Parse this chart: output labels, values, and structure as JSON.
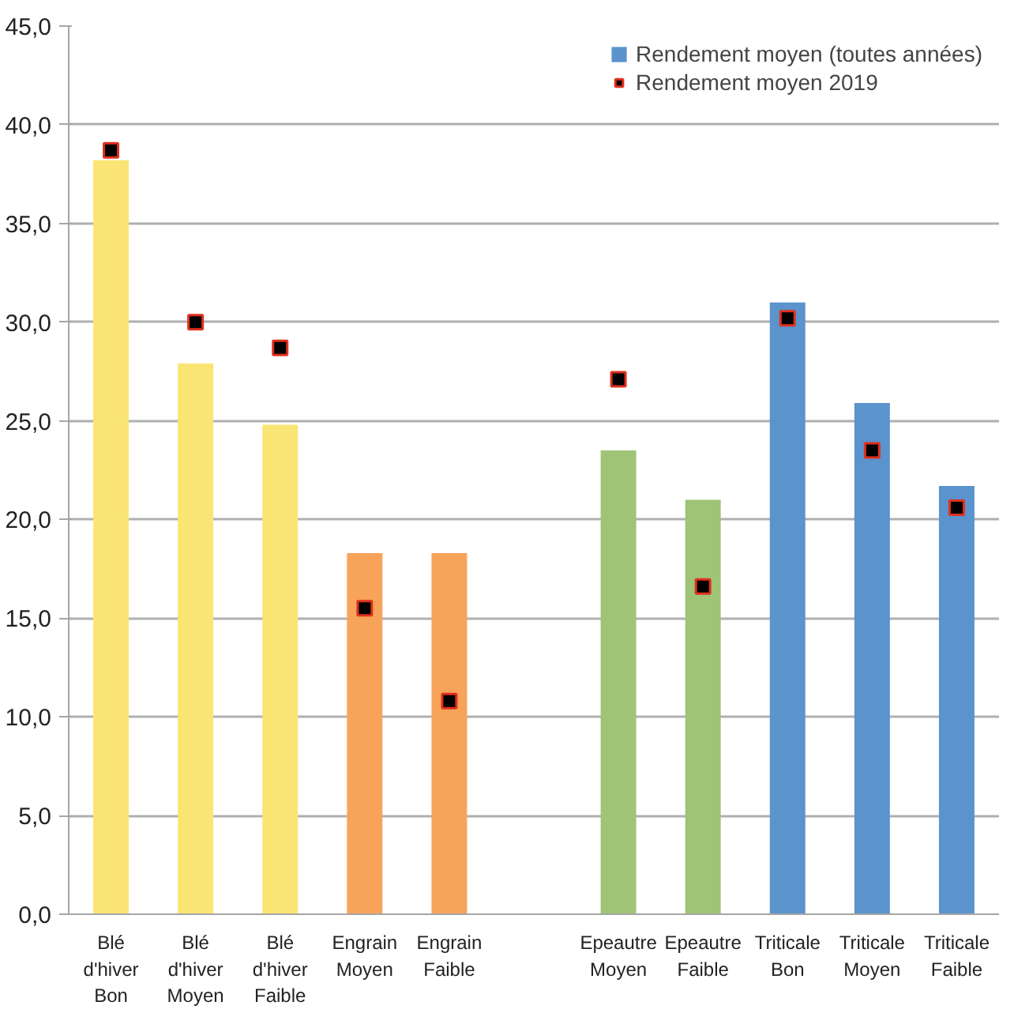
{
  "chart_data": {
    "type": "bar",
    "categories": [
      "Blé\nd'hiver\nBon",
      "Blé\nd'hiver\nMoyen",
      "Blé\nd'hiver\nFaible",
      "Engrain\nMoyen",
      "Engrain\nFaible",
      null,
      "Epeautre\nMoyen",
      "Epeautre\nFaible",
      "Triticale\nBon",
      "Triticale\nMoyen",
      "Triticale\nFaible"
    ],
    "series": [
      {
        "name": "Rendement moyen (toutes années)",
        "colors": [
          "#fae574",
          "#fae574",
          "#fae574",
          "#f8a35a",
          "#f8a35a",
          "#5b93cd",
          "#9fc476",
          "#9fc476",
          "#5b93cd",
          "#5b93cd",
          "#5b93cd"
        ],
        "values": [
          38.2,
          27.9,
          24.8,
          18.3,
          18.3,
          null,
          23.5,
          21.0,
          31.0,
          25.9,
          21.7
        ]
      },
      {
        "name": "Rendement moyen 2019",
        "type": "scatter",
        "color": "#000000",
        "values": [
          38.7,
          30.0,
          28.7,
          15.5,
          10.8,
          null,
          27.1,
          16.6,
          30.2,
          23.5,
          20.6
        ]
      }
    ],
    "marker": "square",
    "ylim": [
      0,
      45
    ],
    "yticks": [
      {
        "value": 0,
        "label": "0,0"
      },
      {
        "value": 5,
        "label": "5,0"
      },
      {
        "value": 10,
        "label": "10,0"
      },
      {
        "value": 15,
        "label": "15,0"
      },
      {
        "value": 20,
        "label": "20,0"
      },
      {
        "value": 25,
        "label": "25,0"
      },
      {
        "value": 30,
        "label": "30,0"
      },
      {
        "value": 35,
        "label": "35,0"
      },
      {
        "value": 40,
        "label": "40,0"
      },
      {
        "value": 45,
        "label": "45,0"
      }
    ],
    "grid": "y",
    "legend": "top right"
  }
}
